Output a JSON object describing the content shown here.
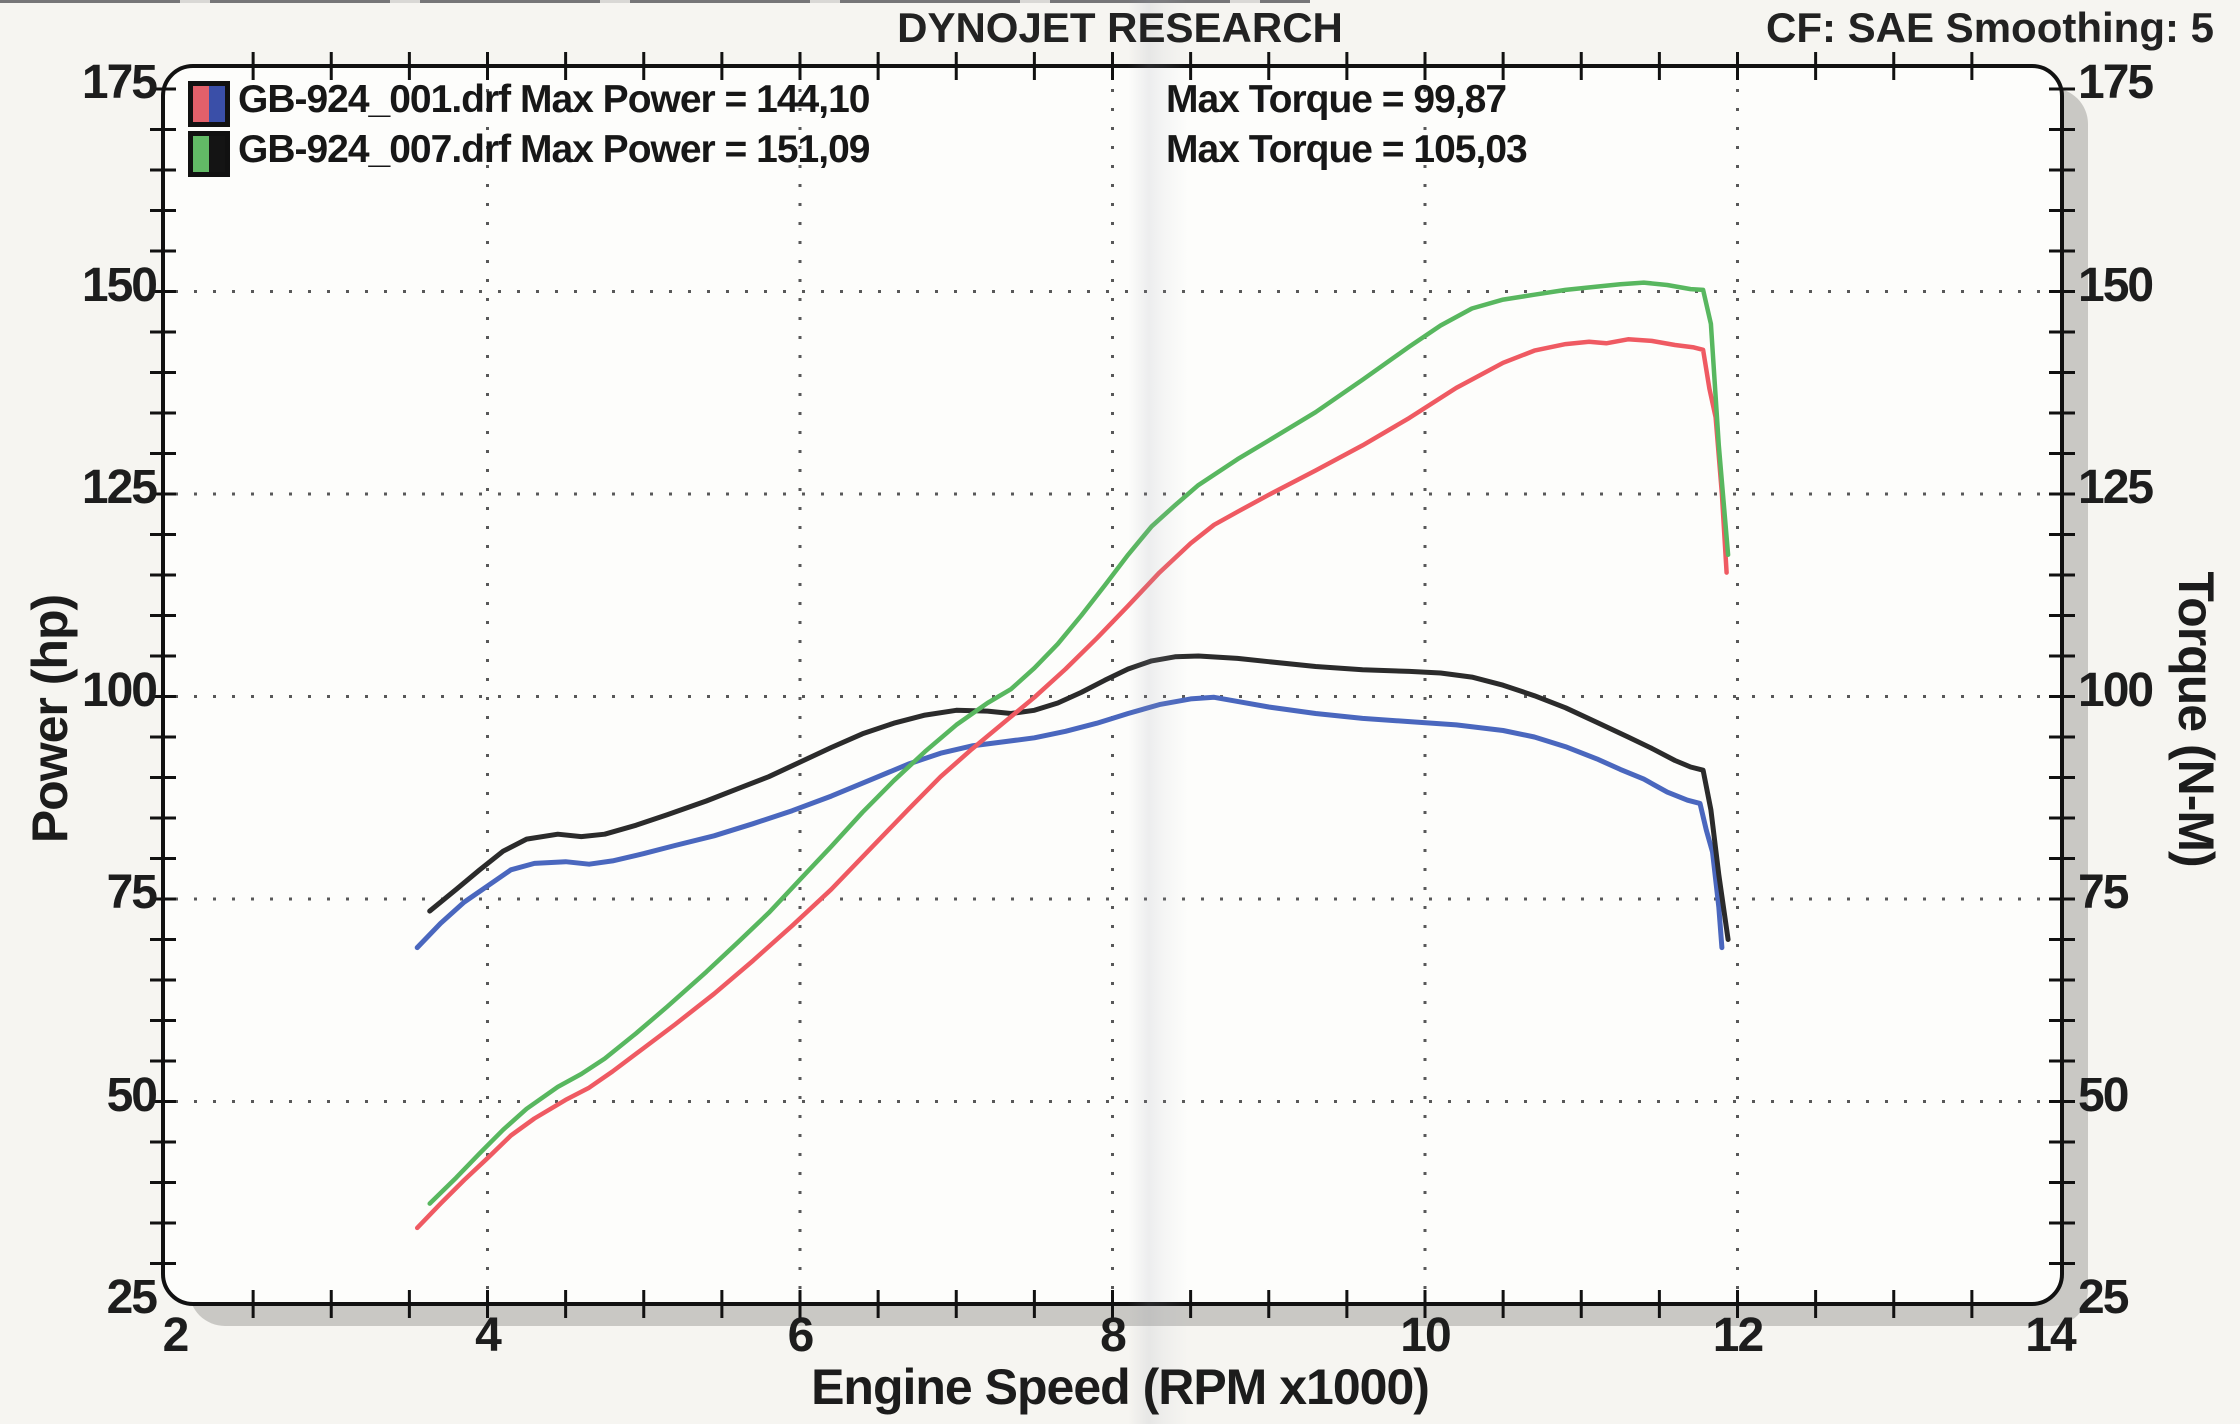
{
  "header": {
    "title": "DYNOJET RESEARCH",
    "correction_info": "CF: SAE  Smoothing: 5"
  },
  "legend": {
    "rows": [
      {
        "file": "GB-924_001.drf",
        "power_text": "Max Power = 144,10",
        "torque_text": "Max Torque = 99,87",
        "swatch_left": "#e2606a",
        "swatch_right": "#3a4fa8"
      },
      {
        "file": "GB-924_007.drf",
        "power_text": "Max Power = 151,09",
        "torque_text": "Max Torque = 105,03",
        "swatch_left": "#62ba66",
        "swatch_right": "#141414"
      }
    ]
  },
  "chart_data": {
    "type": "line",
    "title": "DYNOJET RESEARCH",
    "xlabel": "Engine Speed (RPM x1000)",
    "ylabel_left": "Power (hp)",
    "ylabel_right": "Torque (N-M)",
    "xlim": [
      2,
      14
    ],
    "ylim": [
      25,
      175
    ],
    "x_ticks": [
      2,
      4,
      6,
      8,
      10,
      12,
      14
    ],
    "y_ticks": [
      25,
      50,
      75,
      100,
      125,
      150,
      175
    ],
    "x_minor_tick_step": 0.5,
    "y_minor_tick_step": 5,
    "grid_x_values": [
      4,
      6,
      8,
      10,
      12
    ],
    "grid_y_values": [
      50,
      75,
      100,
      125,
      150
    ],
    "grid_style": "dotted",
    "legend_position": "top-left",
    "series": [
      {
        "name": "GB-924_001 Power (hp)",
        "axis": "left",
        "color": "#ef5a62",
        "max": 144.1,
        "points": [
          [
            3.55,
            34.4
          ],
          [
            3.7,
            37.4
          ],
          [
            3.85,
            40.3
          ],
          [
            4.0,
            43.0
          ],
          [
            4.15,
            45.8
          ],
          [
            4.3,
            47.9
          ],
          [
            4.5,
            50.2
          ],
          [
            4.65,
            51.7
          ],
          [
            4.8,
            53.7
          ],
          [
            5.0,
            56.6
          ],
          [
            5.2,
            59.5
          ],
          [
            5.45,
            63.3
          ],
          [
            5.7,
            67.4
          ],
          [
            5.95,
            71.7
          ],
          [
            6.2,
            76.2
          ],
          [
            6.45,
            81.2
          ],
          [
            6.7,
            86.2
          ],
          [
            6.9,
            90.1
          ],
          [
            7.1,
            93.5
          ],
          [
            7.3,
            96.7
          ],
          [
            7.5,
            99.9
          ],
          [
            7.7,
            103.4
          ],
          [
            7.9,
            107.2
          ],
          [
            8.1,
            111.2
          ],
          [
            8.3,
            115.3
          ],
          [
            8.5,
            118.9
          ],
          [
            8.65,
            121.2
          ],
          [
            8.8,
            122.8
          ],
          [
            9.0,
            124.9
          ],
          [
            9.3,
            127.9
          ],
          [
            9.6,
            131.0
          ],
          [
            9.9,
            134.4
          ],
          [
            10.2,
            138.1
          ],
          [
            10.5,
            141.2
          ],
          [
            10.7,
            142.7
          ],
          [
            10.9,
            143.5
          ],
          [
            11.05,
            143.8
          ],
          [
            11.16,
            143.6
          ],
          [
            11.3,
            144.1
          ],
          [
            11.45,
            143.9
          ],
          [
            11.6,
            143.4
          ],
          [
            11.72,
            143.1
          ],
          [
            11.78,
            142.8
          ],
          [
            11.82,
            138.0
          ],
          [
            11.86,
            134.5
          ],
          [
            11.9,
            125.0
          ],
          [
            11.93,
            115.3
          ]
        ]
      },
      {
        "name": "GB-924_007 Power (hp)",
        "axis": "left",
        "color": "#58b75f",
        "max": 151.09,
        "points": [
          [
            3.63,
            37.4
          ],
          [
            3.8,
            40.6
          ],
          [
            3.95,
            43.6
          ],
          [
            4.1,
            46.5
          ],
          [
            4.25,
            49.1
          ],
          [
            4.45,
            51.8
          ],
          [
            4.6,
            53.4
          ],
          [
            4.75,
            55.3
          ],
          [
            4.95,
            58.4
          ],
          [
            5.15,
            61.7
          ],
          [
            5.4,
            66.0
          ],
          [
            5.6,
            69.6
          ],
          [
            5.8,
            73.3
          ],
          [
            6.0,
            77.4
          ],
          [
            6.2,
            81.5
          ],
          [
            6.4,
            85.7
          ],
          [
            6.6,
            89.6
          ],
          [
            6.8,
            93.2
          ],
          [
            7.0,
            96.5
          ],
          [
            7.2,
            99.2
          ],
          [
            7.35,
            100.9
          ],
          [
            7.5,
            103.5
          ],
          [
            7.65,
            106.5
          ],
          [
            7.8,
            110.0
          ],
          [
            7.95,
            113.7
          ],
          [
            8.1,
            117.5
          ],
          [
            8.25,
            121.0
          ],
          [
            8.4,
            123.6
          ],
          [
            8.55,
            126.1
          ],
          [
            8.8,
            129.3
          ],
          [
            9.0,
            131.6
          ],
          [
            9.3,
            135.1
          ],
          [
            9.6,
            139.1
          ],
          [
            9.9,
            143.2
          ],
          [
            10.1,
            145.8
          ],
          [
            10.3,
            147.9
          ],
          [
            10.5,
            149.0
          ],
          [
            10.7,
            149.6
          ],
          [
            10.9,
            150.2
          ],
          [
            11.1,
            150.6
          ],
          [
            11.25,
            150.9
          ],
          [
            11.4,
            151.1
          ],
          [
            11.55,
            150.8
          ],
          [
            11.7,
            150.3
          ],
          [
            11.78,
            150.2
          ],
          [
            11.83,
            146.0
          ],
          [
            11.88,
            131.0
          ],
          [
            11.94,
            117.5
          ]
        ]
      },
      {
        "name": "GB-924_001 Torque (N-M)",
        "axis": "right",
        "color": "#4a67be",
        "max": 99.87,
        "points": [
          [
            3.55,
            69.0
          ],
          [
            3.7,
            72.0
          ],
          [
            3.85,
            74.6
          ],
          [
            4.0,
            76.6
          ],
          [
            4.15,
            78.6
          ],
          [
            4.3,
            79.4
          ],
          [
            4.5,
            79.6
          ],
          [
            4.65,
            79.3
          ],
          [
            4.8,
            79.7
          ],
          [
            5.0,
            80.6
          ],
          [
            5.2,
            81.6
          ],
          [
            5.45,
            82.8
          ],
          [
            5.7,
            84.3
          ],
          [
            5.95,
            85.9
          ],
          [
            6.2,
            87.7
          ],
          [
            6.45,
            89.7
          ],
          [
            6.7,
            91.7
          ],
          [
            6.9,
            93.0
          ],
          [
            7.1,
            93.9
          ],
          [
            7.3,
            94.4
          ],
          [
            7.5,
            94.9
          ],
          [
            7.7,
            95.7
          ],
          [
            7.9,
            96.7
          ],
          [
            8.1,
            97.9
          ],
          [
            8.3,
            99.0
          ],
          [
            8.5,
            99.7
          ],
          [
            8.65,
            99.9
          ],
          [
            8.8,
            99.4
          ],
          [
            9.0,
            98.7
          ],
          [
            9.3,
            97.9
          ],
          [
            9.6,
            97.3
          ],
          [
            9.9,
            96.9
          ],
          [
            10.2,
            96.5
          ],
          [
            10.5,
            95.8
          ],
          [
            10.7,
            95.0
          ],
          [
            10.9,
            93.8
          ],
          [
            11.1,
            92.3
          ],
          [
            11.25,
            91.0
          ],
          [
            11.4,
            89.8
          ],
          [
            11.55,
            88.2
          ],
          [
            11.68,
            87.2
          ],
          [
            11.76,
            86.8
          ],
          [
            11.8,
            83.5
          ],
          [
            11.84,
            80.8
          ],
          [
            11.88,
            74.0
          ],
          [
            11.9,
            69.0
          ]
        ]
      },
      {
        "name": "GB-924_007 Torque (N-M)",
        "axis": "right",
        "color": "#2b2b2b",
        "max": 105.03,
        "points": [
          [
            3.63,
            73.5
          ],
          [
            3.8,
            76.2
          ],
          [
            3.95,
            78.6
          ],
          [
            4.1,
            80.9
          ],
          [
            4.25,
            82.4
          ],
          [
            4.45,
            83.0
          ],
          [
            4.6,
            82.7
          ],
          [
            4.75,
            83.0
          ],
          [
            4.95,
            84.1
          ],
          [
            5.15,
            85.4
          ],
          [
            5.4,
            87.1
          ],
          [
            5.6,
            88.6
          ],
          [
            5.8,
            90.1
          ],
          [
            6.0,
            91.9
          ],
          [
            6.2,
            93.7
          ],
          [
            6.4,
            95.4
          ],
          [
            6.6,
            96.7
          ],
          [
            6.8,
            97.7
          ],
          [
            7.0,
            98.3
          ],
          [
            7.2,
            98.2
          ],
          [
            7.35,
            97.9
          ],
          [
            7.5,
            98.3
          ],
          [
            7.65,
            99.2
          ],
          [
            7.8,
            100.5
          ],
          [
            7.95,
            102.0
          ],
          [
            8.1,
            103.4
          ],
          [
            8.25,
            104.4
          ],
          [
            8.4,
            104.9
          ],
          [
            8.55,
            105.0
          ],
          [
            8.8,
            104.7
          ],
          [
            9.0,
            104.3
          ],
          [
            9.3,
            103.7
          ],
          [
            9.6,
            103.3
          ],
          [
            9.9,
            103.1
          ],
          [
            10.1,
            102.9
          ],
          [
            10.3,
            102.4
          ],
          [
            10.5,
            101.4
          ],
          [
            10.7,
            100.1
          ],
          [
            10.9,
            98.6
          ],
          [
            11.1,
            96.8
          ],
          [
            11.3,
            95.0
          ],
          [
            11.45,
            93.6
          ],
          [
            11.6,
            92.1
          ],
          [
            11.7,
            91.3
          ],
          [
            11.78,
            90.9
          ],
          [
            11.83,
            86.0
          ],
          [
            11.88,
            78.0
          ],
          [
            11.94,
            70.0
          ]
        ]
      }
    ]
  },
  "colors": {
    "paper": "#f6f5f1",
    "plot_fill": "#fdfdfb",
    "frame_stroke": "#111111",
    "shadow": "#c9c8c4",
    "grid_dot": "#3c3c3c",
    "tick": "#111111",
    "text": "#1c1c1c"
  }
}
